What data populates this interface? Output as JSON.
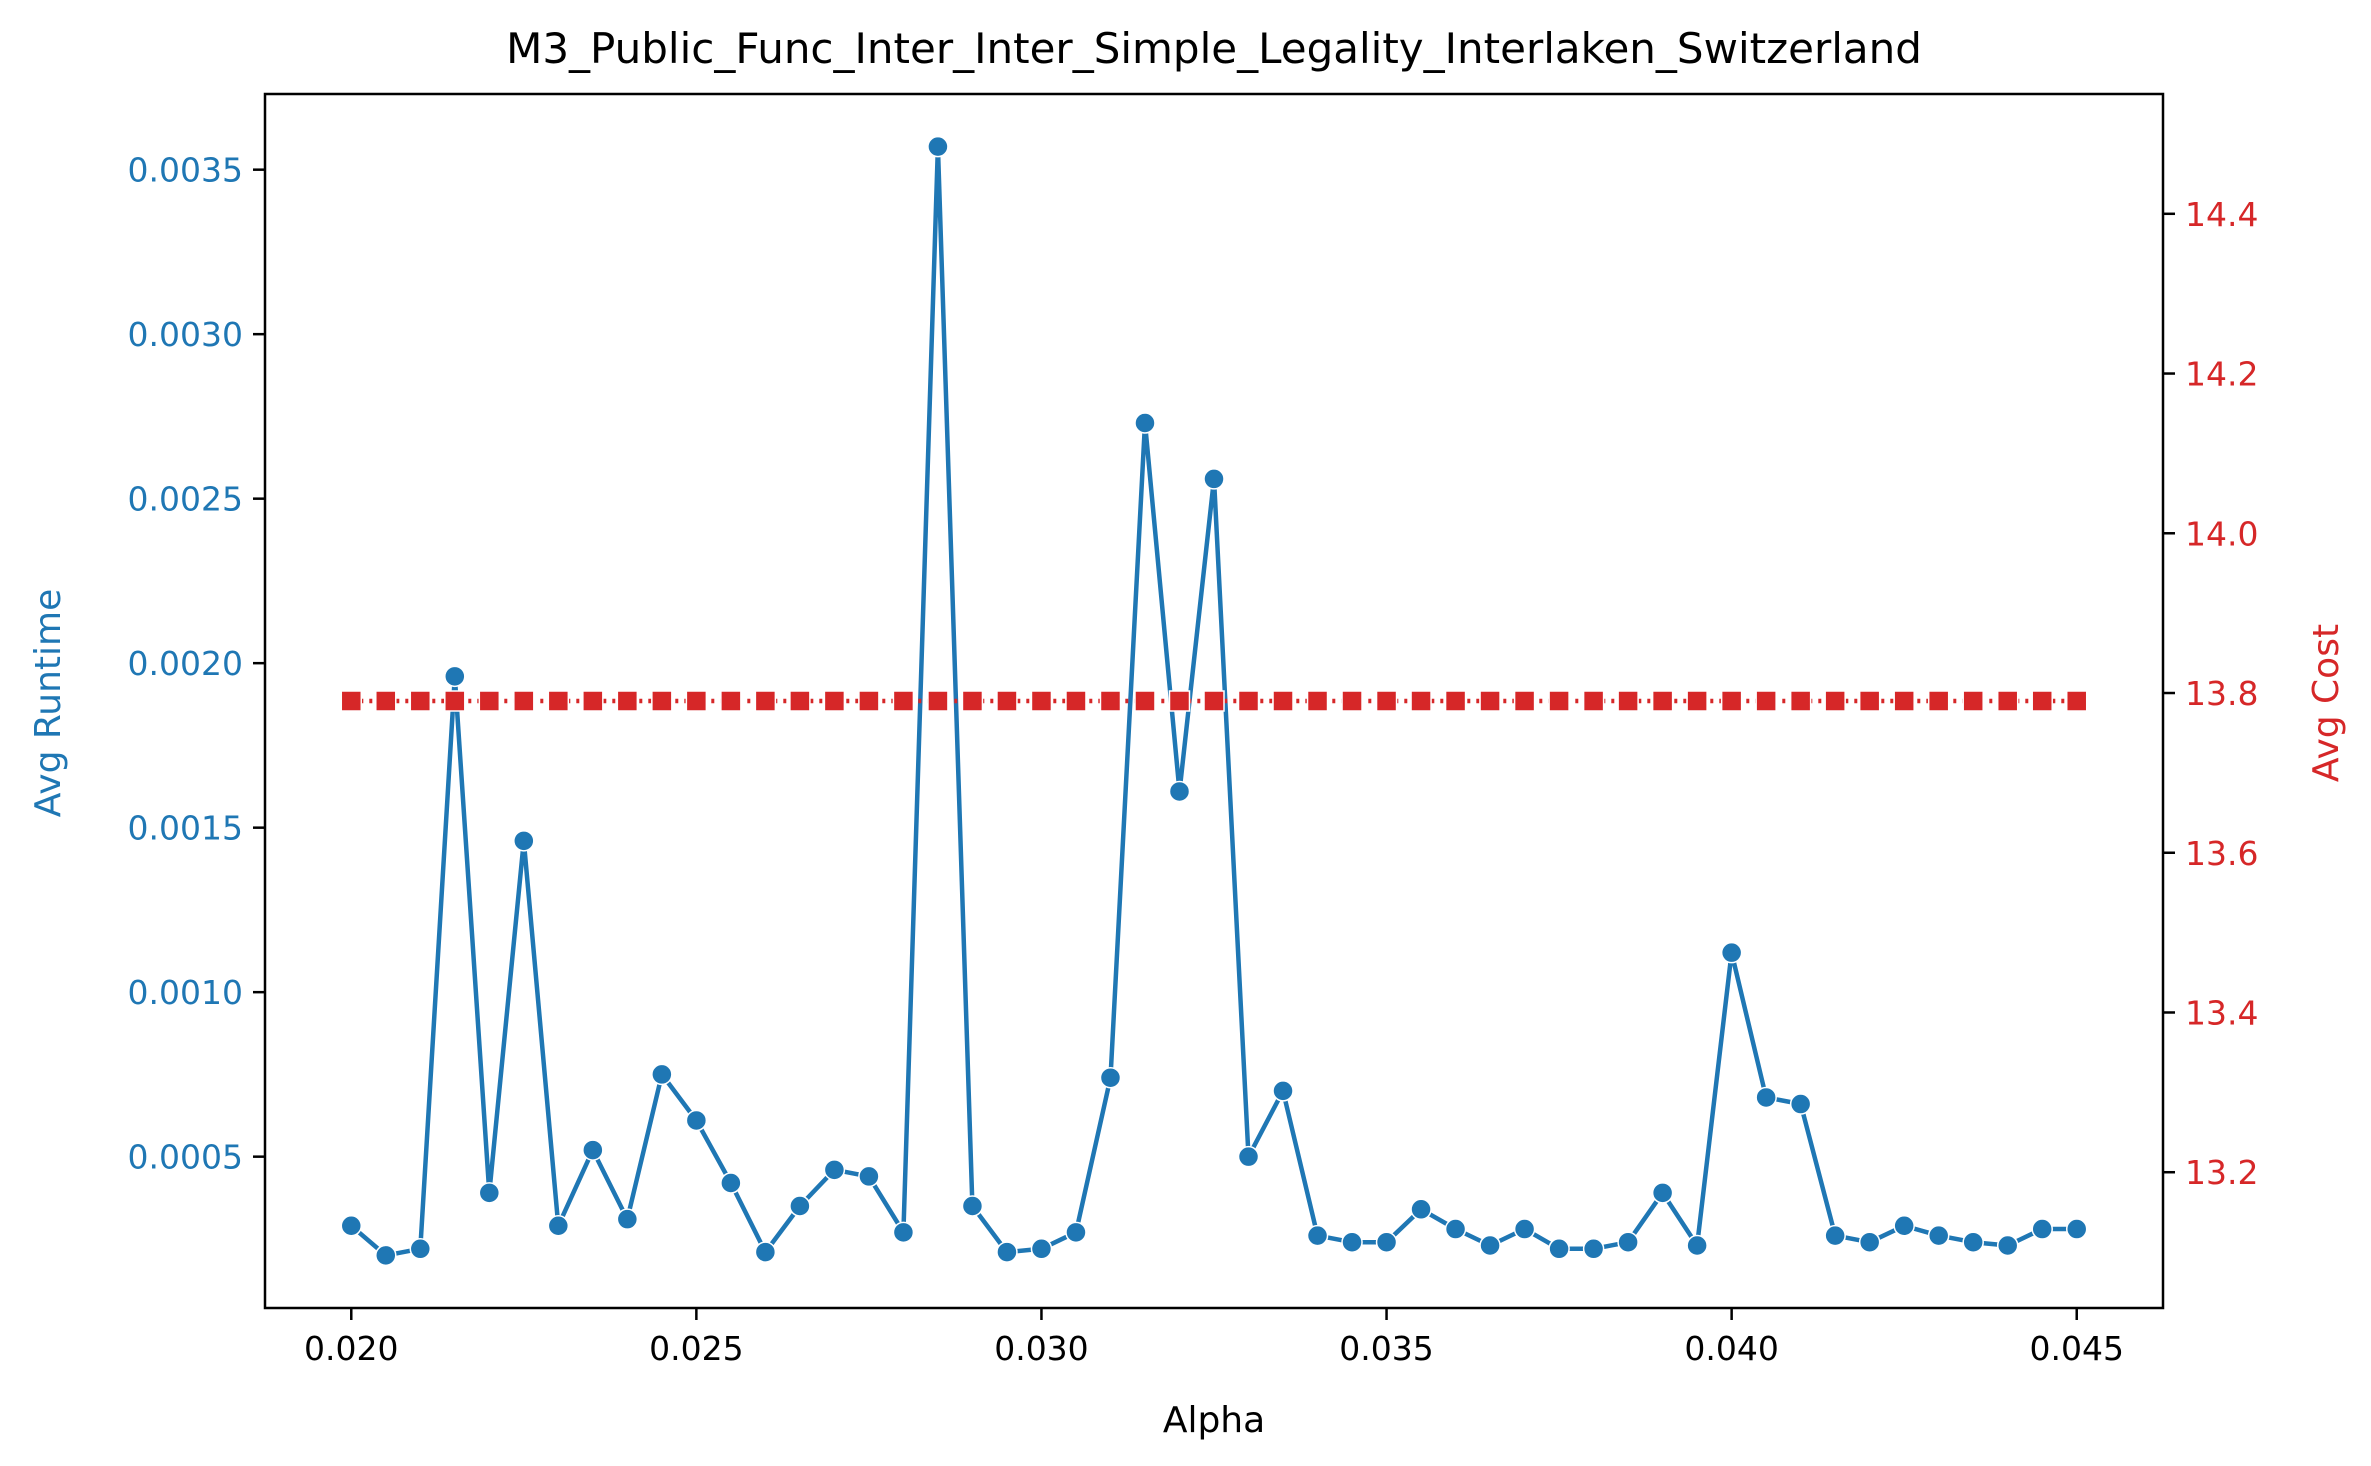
{
  "chart_data": {
    "type": "line",
    "title": "M3_Public_Func_Inter_Inter_Simple_Legality_Interlaken_Switzerland",
    "xlabel": "Alpha",
    "ylabel_left": "Avg Runtime",
    "ylabel_right": "Avg Cost",
    "xlim": [
      0.01875,
      0.04625
    ],
    "ylim_left": [
      4e-05,
      0.00373
    ],
    "ylim_right": [
      13.03,
      14.55
    ],
    "x_ticks": [
      "0.020",
      "0.025",
      "0.030",
      "0.035",
      "0.040",
      "0.045"
    ],
    "y_ticks_left": [
      "0.0005",
      "0.0010",
      "0.0015",
      "0.0020",
      "0.0025",
      "0.0030",
      "0.0035"
    ],
    "y_ticks_right": [
      "13.2",
      "13.4",
      "13.6",
      "13.8",
      "14.0",
      "14.2",
      "14.4"
    ],
    "grid": false,
    "colors": {
      "runtime": "#1f77b4",
      "cost": "#d62728",
      "axes": "#000000"
    },
    "x": [
      0.02,
      0.0205,
      0.021,
      0.0215,
      0.022,
      0.0225,
      0.023,
      0.0235,
      0.024,
      0.0245,
      0.025,
      0.0255,
      0.026,
      0.0265,
      0.027,
      0.0275,
      0.028,
      0.0285,
      0.029,
      0.0295,
      0.03,
      0.0305,
      0.031,
      0.0315,
      0.032,
      0.0325,
      0.033,
      0.0335,
      0.034,
      0.0345,
      0.035,
      0.0355,
      0.036,
      0.0365,
      0.037,
      0.0375,
      0.038,
      0.0385,
      0.039,
      0.0395,
      0.04,
      0.0405,
      0.041,
      0.0415,
      0.042,
      0.0425,
      0.043,
      0.0435,
      0.044,
      0.0445,
      0.045
    ],
    "series": [
      {
        "axis": "left",
        "marker": "circle",
        "values": [
          0.00029,
          0.0002,
          0.00022,
          0.00196,
          0.00039,
          0.00146,
          0.00029,
          0.00052,
          0.00031,
          0.00075,
          0.00061,
          0.00042,
          0.00021,
          0.00035,
          0.00046,
          0.00044,
          0.00027,
          0.00357,
          0.00035,
          0.00021,
          0.00022,
          0.00027,
          0.00074,
          0.00273,
          0.00161,
          0.00256,
          0.0005,
          0.0007,
          0.00026,
          0.00024,
          0.00024,
          0.00034,
          0.00028,
          0.00023,
          0.00028,
          0.00022,
          0.00022,
          0.00024,
          0.00039,
          0.00023,
          0.00112,
          0.00068,
          0.00066,
          0.00026,
          0.00024,
          0.00029,
          0.00026,
          0.00024,
          0.00023,
          0.00028,
          0.00028
        ]
      },
      {
        "axis": "right",
        "marker": "square",
        "linestyle": "dotted",
        "values": [
          13.79,
          13.79,
          13.79,
          13.79,
          13.79,
          13.79,
          13.79,
          13.79,
          13.79,
          13.79,
          13.79,
          13.79,
          13.79,
          13.79,
          13.79,
          13.79,
          13.79,
          13.79,
          13.79,
          13.79,
          13.79,
          13.79,
          13.79,
          13.79,
          13.79,
          13.79,
          13.79,
          13.79,
          13.79,
          13.79,
          13.79,
          13.79,
          13.79,
          13.79,
          13.79,
          13.79,
          13.79,
          13.79,
          13.79,
          13.79,
          13.79,
          13.79,
          13.79,
          13.79,
          13.79,
          13.79,
          13.79,
          13.79,
          13.79,
          13.79,
          13.79
        ]
      }
    ]
  }
}
